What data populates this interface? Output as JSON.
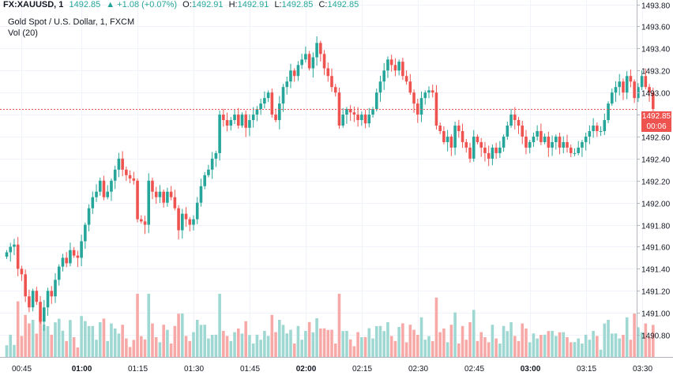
{
  "header": {
    "symbol": "FX:XAUUSD, 1",
    "last": "1492.85",
    "change": "+1.08 (+0.07%)",
    "o_label": "O:",
    "o_value": "1492.91",
    "h_label": "H:",
    "h_value": "1492.91",
    "l_label": "L:",
    "l_value": "1492.85",
    "c_label": "C:",
    "c_value": "1492.85",
    "title": "Gold Spot / U.S. Dollar, 1, FXCM",
    "volume_label": "Vol (20)"
  },
  "price_badge": {
    "price": "1492.85",
    "countdown": "00:06"
  },
  "colors": {
    "up": "#26a69a",
    "down": "#ef5350",
    "vol_up": "#9fd8d2",
    "vol_down": "#f7a9a7",
    "grid": "#f0f3fa"
  },
  "chart_data": {
    "type": "candlestick",
    "y_axis": {
      "ticks": [
        1490.8,
        1491.0,
        1491.2,
        1491.4,
        1491.6,
        1491.8,
        1492.0,
        1492.2,
        1492.4,
        1492.6,
        1492.8,
        1493.0,
        1493.2,
        1493.4,
        1493.6,
        1493.8
      ],
      "range": [
        1490.6,
        1493.84
      ]
    },
    "x_axis": {
      "ticks": [
        "00:45",
        "01:00",
        "01:15",
        "01:30",
        "01:45",
        "02:00",
        "02:15",
        "02:30",
        "02:45",
        "03:00",
        "03:15",
        "03:30"
      ],
      "tick_bar_index": [
        4,
        20,
        35,
        50,
        65,
        80,
        95,
        110,
        125,
        140,
        155,
        170
      ],
      "bold_ticks": [
        "01:00",
        "02:00",
        "03:00"
      ]
    },
    "last_price": 1492.85,
    "close": [
      1491.55,
      1491.6,
      1491.62,
      1491.4,
      1491.35,
      1491.15,
      1491.05,
      1491.2,
      1491.1,
      1490.92,
      1491.05,
      1491.2,
      1491.15,
      1491.3,
      1491.42,
      1491.5,
      1491.45,
      1491.57,
      1491.52,
      1491.5,
      1491.65,
      1491.8,
      1491.95,
      1492.05,
      1492.1,
      1492.2,
      1492.05,
      1492.1,
      1492.2,
      1492.3,
      1492.4,
      1492.3,
      1492.25,
      1492.22,
      1492.2,
      1491.85,
      1491.83,
      1491.8,
      1492.2,
      1492.1,
      1492.05,
      1492.1,
      1492.0,
      1492.1,
      1492.05,
      1491.95,
      1491.75,
      1491.9,
      1491.85,
      1491.8,
      1491.85,
      1492.0,
      1492.15,
      1492.25,
      1492.3,
      1492.4,
      1492.45,
      1492.8,
      1492.75,
      1492.7,
      1492.75,
      1492.8,
      1492.7,
      1492.8,
      1492.68,
      1492.75,
      1492.8,
      1492.85,
      1492.9,
      1492.95,
      1493.0,
      1492.8,
      1492.75,
      1492.9,
      1493.05,
      1493.1,
      1493.2,
      1493.15,
      1493.25,
      1493.3,
      1493.35,
      1493.22,
      1493.32,
      1493.45,
      1493.35,
      1493.22,
      1493.15,
      1493.05,
      1493.0,
      1492.7,
      1492.8,
      1492.85,
      1492.82,
      1492.8,
      1492.75,
      1492.8,
      1492.72,
      1492.8,
      1492.85,
      1493.0,
      1493.1,
      1493.2,
      1493.3,
      1493.25,
      1493.2,
      1493.28,
      1493.15,
      1493.1,
      1493.0,
      1492.9,
      1492.8,
      1492.95,
      1493.0,
      1493.02,
      1493.0,
      1492.7,
      1492.65,
      1492.55,
      1492.6,
      1492.5,
      1492.7,
      1492.65,
      1492.55,
      1492.5,
      1492.4,
      1492.6,
      1492.55,
      1492.5,
      1492.45,
      1492.4,
      1492.5,
      1492.45,
      1492.5,
      1492.6,
      1492.7,
      1492.8,
      1492.75,
      1492.7,
      1492.6,
      1492.5,
      1492.55,
      1492.6,
      1492.65,
      1492.55,
      1492.6,
      1492.5,
      1492.55,
      1492.6,
      1492.5,
      1492.55,
      1492.5,
      1492.45,
      1492.45,
      1492.5,
      1492.55,
      1492.6,
      1492.65,
      1492.7,
      1492.65,
      1492.65,
      1492.75,
      1492.9,
      1493.0,
      1493.05,
      1493.1,
      1493.0,
      1493.15,
      1493.1,
      1492.95,
      1493.05,
      1493.15,
      1493.05,
      1493.0,
      1492.85
    ]
  }
}
